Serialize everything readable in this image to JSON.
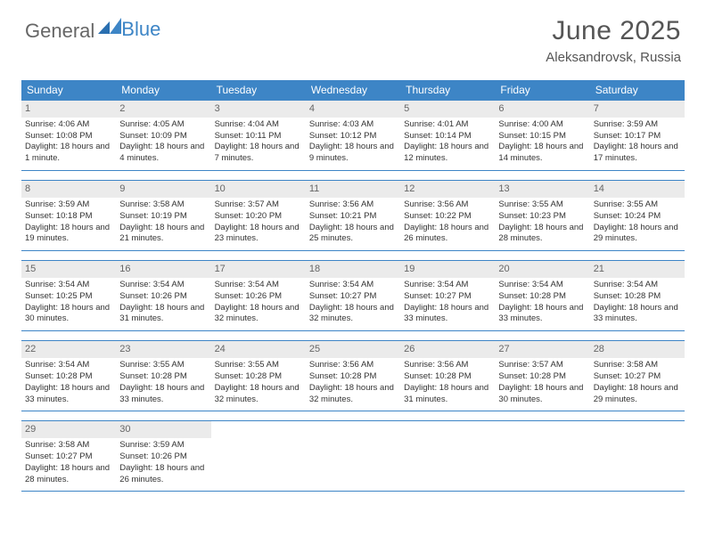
{
  "brand": {
    "part1": "General",
    "part2": "Blue"
  },
  "title": "June 2025",
  "subtitle": "Aleksandrovsk, Russia",
  "colors": {
    "header_bg": "#3d85c6",
    "daynum_bg": "#ebebeb",
    "daynum_color": "#666666",
    "border": "#3d85c6",
    "text": "#333333"
  },
  "dayNames": [
    "Sunday",
    "Monday",
    "Tuesday",
    "Wednesday",
    "Thursday",
    "Friday",
    "Saturday"
  ],
  "weeks": [
    [
      {
        "n": "1",
        "sr": "4:06 AM",
        "ss": "10:08 PM",
        "dl": "18 hours and 1 minute."
      },
      {
        "n": "2",
        "sr": "4:05 AM",
        "ss": "10:09 PM",
        "dl": "18 hours and 4 minutes."
      },
      {
        "n": "3",
        "sr": "4:04 AM",
        "ss": "10:11 PM",
        "dl": "18 hours and 7 minutes."
      },
      {
        "n": "4",
        "sr": "4:03 AM",
        "ss": "10:12 PM",
        "dl": "18 hours and 9 minutes."
      },
      {
        "n": "5",
        "sr": "4:01 AM",
        "ss": "10:14 PM",
        "dl": "18 hours and 12 minutes."
      },
      {
        "n": "6",
        "sr": "4:00 AM",
        "ss": "10:15 PM",
        "dl": "18 hours and 14 minutes."
      },
      {
        "n": "7",
        "sr": "3:59 AM",
        "ss": "10:17 PM",
        "dl": "18 hours and 17 minutes."
      }
    ],
    [
      {
        "n": "8",
        "sr": "3:59 AM",
        "ss": "10:18 PM",
        "dl": "18 hours and 19 minutes."
      },
      {
        "n": "9",
        "sr": "3:58 AM",
        "ss": "10:19 PM",
        "dl": "18 hours and 21 minutes."
      },
      {
        "n": "10",
        "sr": "3:57 AM",
        "ss": "10:20 PM",
        "dl": "18 hours and 23 minutes."
      },
      {
        "n": "11",
        "sr": "3:56 AM",
        "ss": "10:21 PM",
        "dl": "18 hours and 25 minutes."
      },
      {
        "n": "12",
        "sr": "3:56 AM",
        "ss": "10:22 PM",
        "dl": "18 hours and 26 minutes."
      },
      {
        "n": "13",
        "sr": "3:55 AM",
        "ss": "10:23 PM",
        "dl": "18 hours and 28 minutes."
      },
      {
        "n": "14",
        "sr": "3:55 AM",
        "ss": "10:24 PM",
        "dl": "18 hours and 29 minutes."
      }
    ],
    [
      {
        "n": "15",
        "sr": "3:54 AM",
        "ss": "10:25 PM",
        "dl": "18 hours and 30 minutes."
      },
      {
        "n": "16",
        "sr": "3:54 AM",
        "ss": "10:26 PM",
        "dl": "18 hours and 31 minutes."
      },
      {
        "n": "17",
        "sr": "3:54 AM",
        "ss": "10:26 PM",
        "dl": "18 hours and 32 minutes."
      },
      {
        "n": "18",
        "sr": "3:54 AM",
        "ss": "10:27 PM",
        "dl": "18 hours and 32 minutes."
      },
      {
        "n": "19",
        "sr": "3:54 AM",
        "ss": "10:27 PM",
        "dl": "18 hours and 33 minutes."
      },
      {
        "n": "20",
        "sr": "3:54 AM",
        "ss": "10:28 PM",
        "dl": "18 hours and 33 minutes."
      },
      {
        "n": "21",
        "sr": "3:54 AM",
        "ss": "10:28 PM",
        "dl": "18 hours and 33 minutes."
      }
    ],
    [
      {
        "n": "22",
        "sr": "3:54 AM",
        "ss": "10:28 PM",
        "dl": "18 hours and 33 minutes."
      },
      {
        "n": "23",
        "sr": "3:55 AM",
        "ss": "10:28 PM",
        "dl": "18 hours and 33 minutes."
      },
      {
        "n": "24",
        "sr": "3:55 AM",
        "ss": "10:28 PM",
        "dl": "18 hours and 32 minutes."
      },
      {
        "n": "25",
        "sr": "3:56 AM",
        "ss": "10:28 PM",
        "dl": "18 hours and 32 minutes."
      },
      {
        "n": "26",
        "sr": "3:56 AM",
        "ss": "10:28 PM",
        "dl": "18 hours and 31 minutes."
      },
      {
        "n": "27",
        "sr": "3:57 AM",
        "ss": "10:28 PM",
        "dl": "18 hours and 30 minutes."
      },
      {
        "n": "28",
        "sr": "3:58 AM",
        "ss": "10:27 PM",
        "dl": "18 hours and 29 minutes."
      }
    ],
    [
      {
        "n": "29",
        "sr": "3:58 AM",
        "ss": "10:27 PM",
        "dl": "18 hours and 28 minutes."
      },
      {
        "n": "30",
        "sr": "3:59 AM",
        "ss": "10:26 PM",
        "dl": "18 hours and 26 minutes."
      },
      null,
      null,
      null,
      null,
      null
    ]
  ],
  "labels": {
    "sunrise": "Sunrise: ",
    "sunset": "Sunset: ",
    "daylight": "Daylight: "
  }
}
